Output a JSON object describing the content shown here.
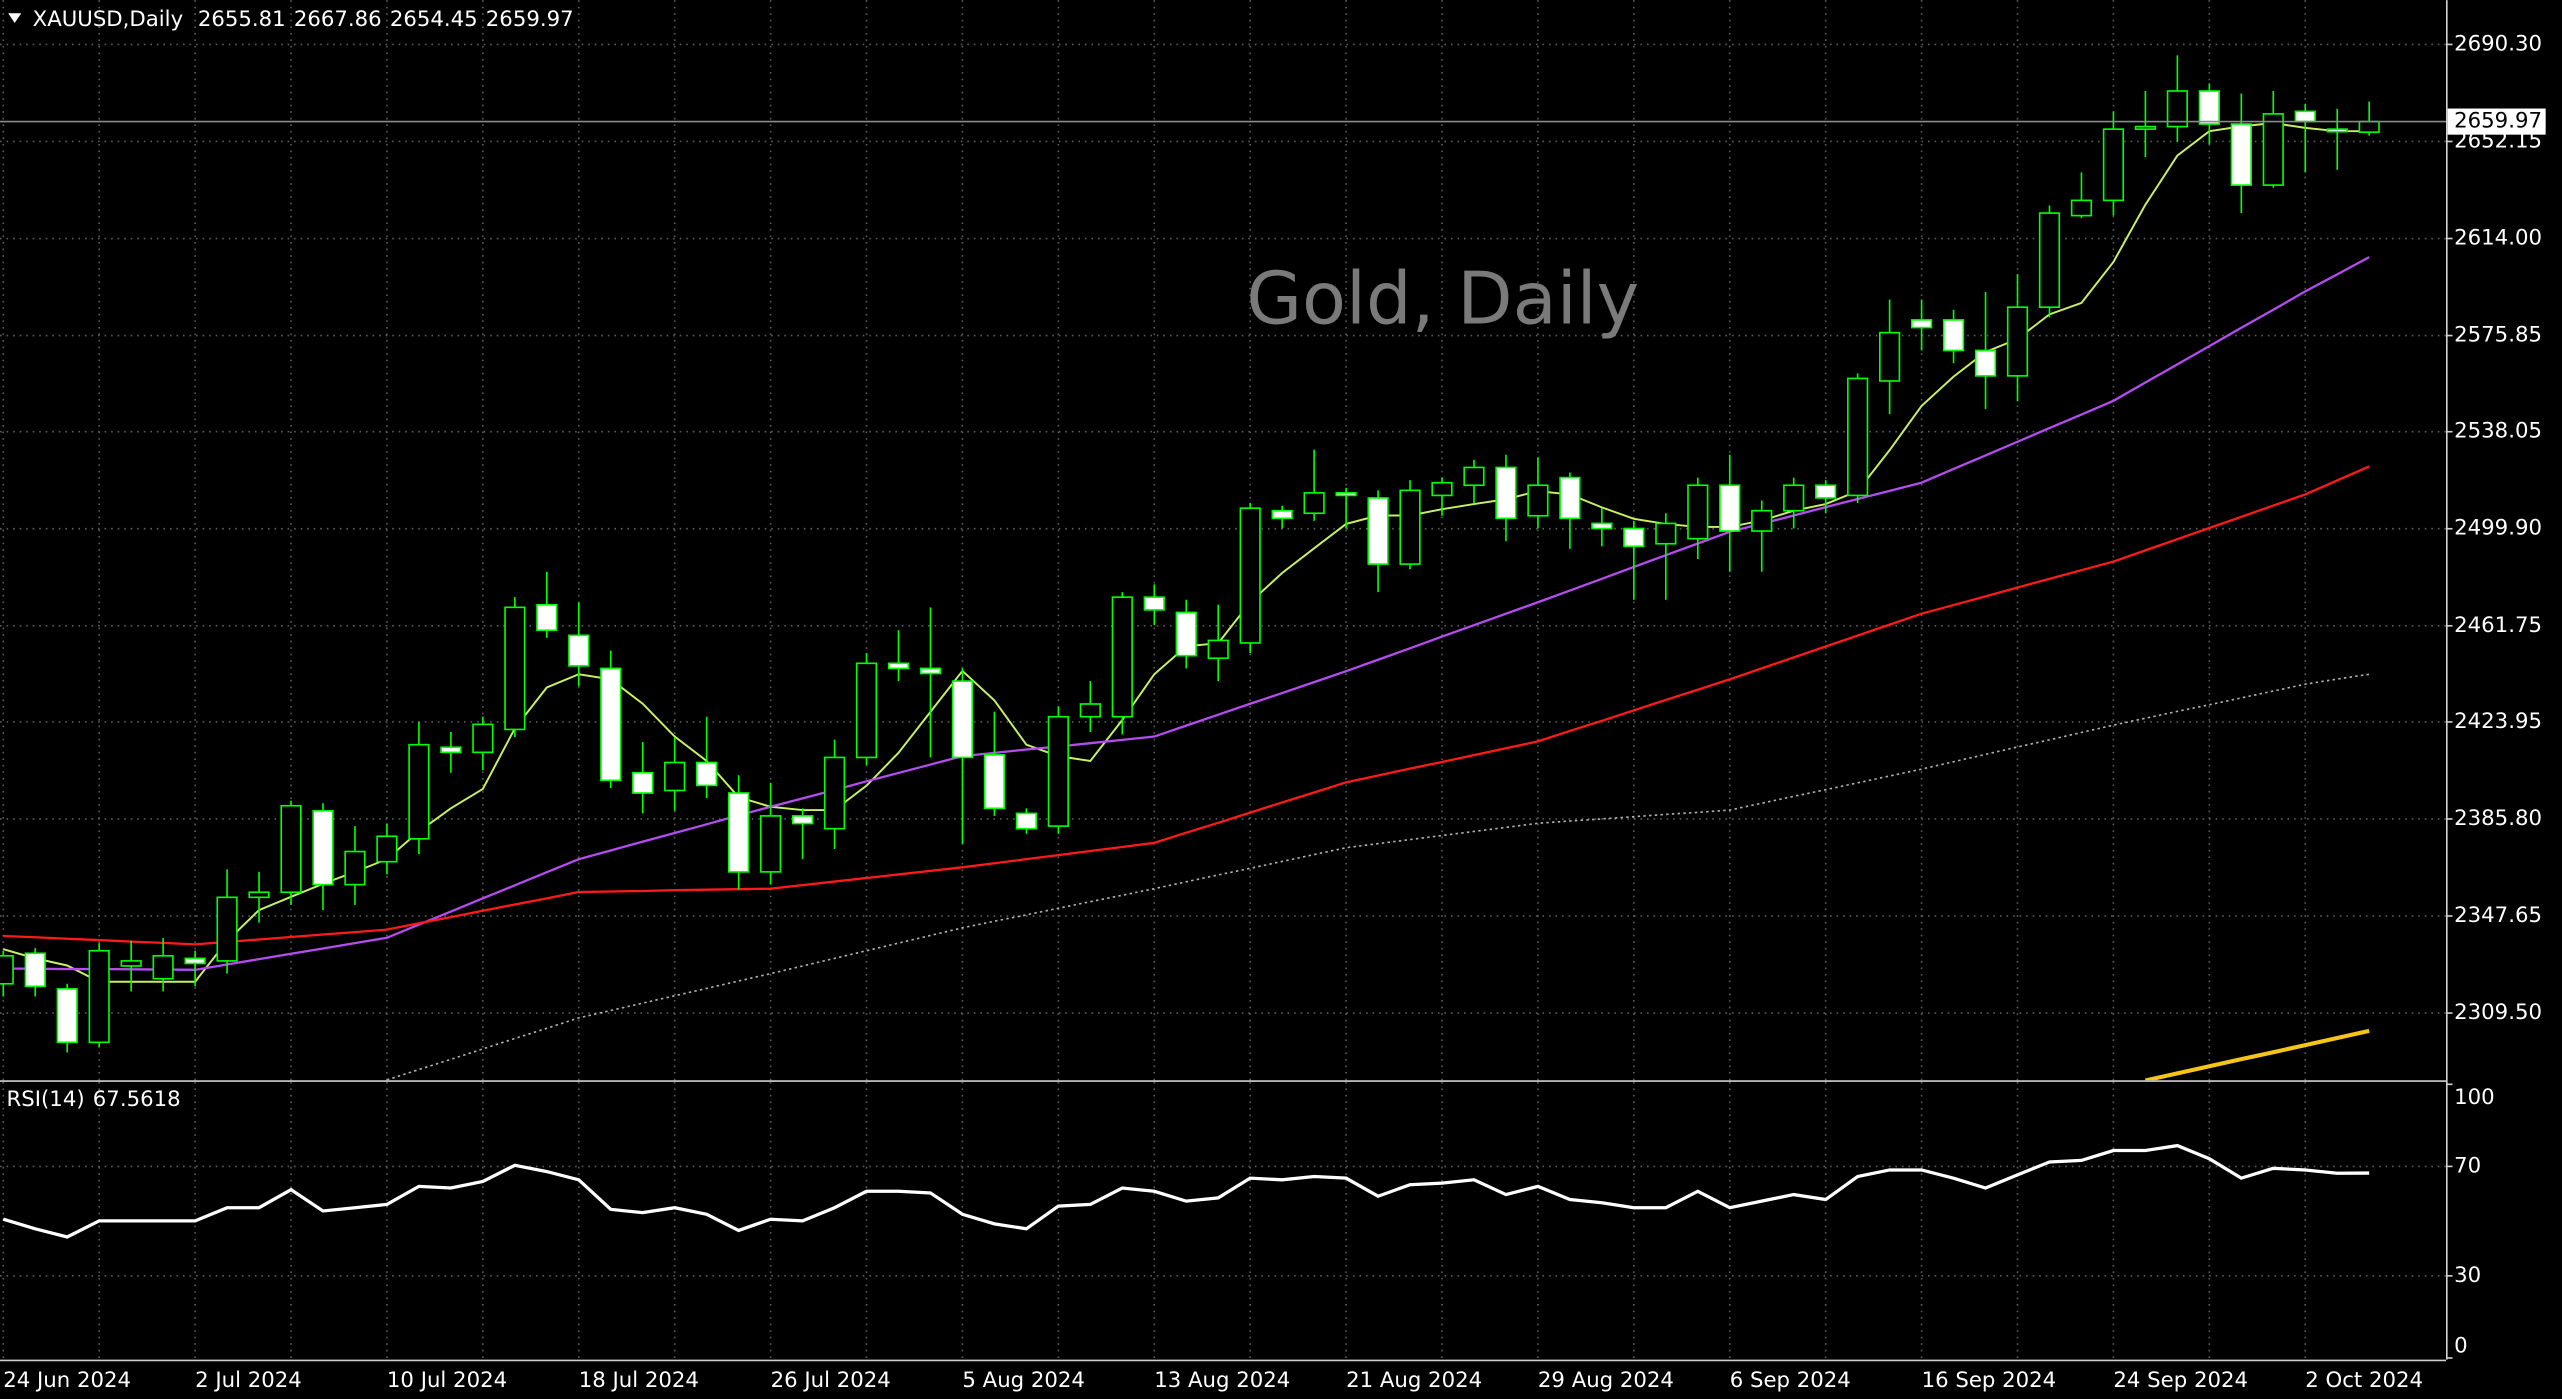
{
  "chart_data": [
    {
      "type": "candlestick",
      "title": "XAUUSD,Daily",
      "watermark": "Gold, Daily",
      "categories": [
        "24 Jun 2024",
        null,
        null,
        null,
        null,
        null,
        "2 Jul 2024",
        null,
        null,
        null,
        null,
        null,
        "10 Jul 2024",
        null,
        null,
        null,
        null,
        null,
        "18 Jul 2024",
        null,
        null,
        null,
        null,
        null,
        "26 Jul 2024",
        null,
        null,
        null,
        null,
        null,
        "5 Aug 2024",
        null,
        null,
        null,
        null,
        null,
        "13 Aug 2024",
        null,
        null,
        null,
        null,
        null,
        "21 Aug 2024",
        null,
        null,
        null,
        null,
        null,
        "29 Aug 2024",
        null,
        null,
        null,
        null,
        null,
        "6 Sep 2024",
        null,
        null,
        null,
        null,
        null,
        "16 Sep 2024",
        null,
        null,
        null,
        null,
        null,
        "24 Sep 2024",
        null,
        null,
        null,
        null,
        null,
        "2 Oct 2024",
        null,
        null
      ],
      "open": [
        2321,
        2333,
        2319,
        2298,
        2328,
        2323,
        2331,
        2330,
        2355,
        2357,
        2389,
        2360,
        2369,
        2378,
        2414,
        2412,
        2421,
        2470,
        2458,
        2445,
        2404,
        2397,
        2408,
        2396,
        2365,
        2387,
        2382,
        2410,
        2447,
        2445,
        2440,
        2411,
        2388,
        2383,
        2426,
        2426,
        2473,
        2467,
        2449,
        2455,
        2507,
        2506,
        2514,
        2512,
        2486,
        2513,
        2517,
        2524,
        2505,
        2520,
        2502,
        2500,
        2494,
        2496,
        2517,
        2499,
        2507,
        2517,
        2513,
        2558,
        2582,
        2582,
        2570,
        2560,
        2587,
        2623,
        2629,
        2657,
        2658,
        2672,
        2659,
        2635,
        2664,
        2657,
        2655.81
      ],
      "high": [
        2334,
        2335,
        2321,
        2337,
        2338,
        2339,
        2334,
        2366,
        2365,
        2393,
        2392,
        2383,
        2384,
        2424,
        2420,
        2426,
        2473,
        2483,
        2471,
        2452,
        2416,
        2418,
        2426,
        2403,
        2400,
        2390,
        2417,
        2451,
        2460,
        2469,
        2445,
        2428,
        2390,
        2430,
        2440,
        2475,
        2478,
        2472,
        2470,
        2510,
        2509,
        2531,
        2516,
        2515,
        2519,
        2520,
        2527,
        2529,
        2528,
        2522,
        2508,
        2503,
        2506,
        2520,
        2529,
        2511,
        2520,
        2519,
        2561,
        2590,
        2590,
        2586,
        2593,
        2600,
        2627,
        2640,
        2664,
        2672,
        2686,
        2675,
        2671,
        2672,
        2667,
        2665,
        2667.86
      ],
      "low": [
        2316,
        2316,
        2294,
        2296,
        2318,
        2318,
        2320,
        2325,
        2345,
        2352,
        2350,
        2352,
        2364,
        2372,
        2404,
        2405,
        2418,
        2457,
        2438,
        2398,
        2388,
        2389,
        2394,
        2358,
        2360,
        2370,
        2374,
        2407,
        2440,
        2410,
        2376,
        2387,
        2380,
        2380,
        2420,
        2419,
        2462,
        2445,
        2440,
        2451,
        2500,
        2503,
        2500,
        2475,
        2484,
        2505,
        2510,
        2495,
        2500,
        2492,
        2493,
        2472,
        2472,
        2488,
        2483,
        2483,
        2500,
        2506,
        2510,
        2545,
        2570,
        2565,
        2547,
        2550,
        2583,
        2622,
        2623,
        2646,
        2652,
        2651,
        2624,
        2634,
        2640,
        2641,
        2654.45
      ],
      "close": [
        2332,
        2320,
        2298,
        2334,
        2330,
        2332,
        2329,
        2355,
        2357,
        2391,
        2360,
        2373,
        2379,
        2415,
        2412,
        2423,
        2469,
        2460,
        2446,
        2401,
        2396,
        2408,
        2399,
        2365,
        2387,
        2384,
        2410,
        2447,
        2445,
        2443,
        2410,
        2390,
        2382,
        2426,
        2431,
        2473,
        2468,
        2450,
        2456,
        2508,
        2504,
        2514,
        2513,
        2486,
        2515,
        2518,
        2524,
        2504,
        2517,
        2504,
        2500,
        2493,
        2502,
        2517,
        2499,
        2507,
        2517,
        2512,
        2559,
        2577,
        2579,
        2570,
        2560,
        2587,
        2624,
        2629,
        2657,
        2658,
        2672,
        2659,
        2635,
        2663,
        2660,
        2656,
        2659.97
      ],
      "up_color": "#00ff00",
      "down_color": "#ffffff",
      "wick_color": "#00ff00",
      "series": [
        {
          "color": "#c8f064",
          "width": 1.2,
          "dashed": false,
          "values": [
            2334.6,
            2331,
            2328.2,
            2321.8,
            2321.8,
            2321.8,
            2321.8,
            2337.8,
            2350,
            2355.2,
            2360.3,
            2365,
            2370.0,
            2380.9,
            2390,
            2397.6,
            2421.4,
            2437.5,
            2442.7,
            2440.7,
            2431.1,
            2418.2,
            2408.6,
            2394.4,
            2390.6,
            2389.3,
            2389.3,
            2398.9,
            2411.8,
            2427.9,
            2444.0,
            2432.4,
            2415.0,
            2410.5,
            2408.6,
            2424.7,
            2442.7,
            2453.7,
            2454.9,
            2471.0,
            2482.5,
            2492.2,
            2501.8,
            2505.1,
            2505.1,
            2507.6,
            2509.6,
            2511.5,
            2514.7,
            2513.4,
            2508.3,
            2503.8,
            2501.8,
            2500.6,
            2500.6,
            2503.1,
            2507.0,
            2509.6,
            2514.7,
            2530.8,
            2548.2,
            2559.7,
            2569.4,
            2574.5,
            2584.2,
            2588.7,
            2604.8,
            2627.3,
            2646.6,
            2656.2,
            2658.1,
            2659.4,
            2657.5,
            2656.2,
            2656.2
          ]
        },
        {
          "color": "#b44cf0",
          "width": 1.4,
          "dashed": false,
          "values": [
            2327.0,
            2326.9,
            2326.8,
            2326.8,
            2326.7,
            2326.6,
            2326.5,
            2328.6,
            2330.7,
            2332.8,
            2334.9,
            2337.0,
            2339.1,
            2344.3,
            2349.4,
            2354.6,
            2359.7,
            2364.9,
            2370.0,
            2373.4,
            2376.9,
            2380.3,
            2383.7,
            2387.2,
            2390.6,
            2393.9,
            2397.2,
            2400.6,
            2403.9,
            2407.2,
            2410.5,
            2411.8,
            2413.1,
            2414.3,
            2415.6,
            2416.9,
            2418.2,
            2422.5,
            2426.8,
            2431.1,
            2435.3,
            2439.6,
            2443.9,
            2448.4,
            2452.9,
            2457.5,
            2462.0,
            2466.5,
            2471.0,
            2475.6,
            2480.2,
            2484.9,
            2489.5,
            2494.1,
            2498.7,
            2501.9,
            2505.1,
            2508.4,
            2511.6,
            2514.8,
            2518.0,
            2523.4,
            2528.7,
            2534.1,
            2539.5,
            2544.8,
            2550.2,
            2557.4,
            2564.5,
            2571.7,
            2578.9,
            2586.0,
            2593.2,
            2599.9,
            2606.7
          ]
        },
        {
          "color": "#ff1a1a",
          "width": 1.4,
          "dashed": false,
          "values": [
            2339.8,
            2339.3,
            2338.7,
            2338.2,
            2337.6,
            2337.1,
            2336.5,
            2337.5,
            2338.4,
            2339.4,
            2340.4,
            2341.3,
            2342.3,
            2344.8,
            2347.2,
            2349.7,
            2352.2,
            2354.6,
            2357.1,
            2357.3,
            2357.5,
            2357.8,
            2358.0,
            2358.2,
            2358.4,
            2359.8,
            2361.2,
            2362.6,
            2364.0,
            2365.4,
            2366.8,
            2368.4,
            2370.0,
            2371.6,
            2373.2,
            2374.8,
            2376.4,
            2380.4,
            2384.3,
            2388.3,
            2392.3,
            2396.2,
            2400.2,
            2402.9,
            2405.6,
            2408.2,
            2410.9,
            2413.6,
            2416.3,
            2420.4,
            2424.4,
            2428.5,
            2432.6,
            2436.6,
            2440.7,
            2445.0,
            2449.3,
            2453.6,
            2457.9,
            2462.2,
            2466.5,
            2469.9,
            2473.3,
            2476.8,
            2480.2,
            2483.6,
            2487.0,
            2491.4,
            2495.8,
            2500.2,
            2504.6,
            2509.0,
            2513.4,
            2518.9,
            2524.4
          ]
        },
        {
          "color": "#b0b0b0",
          "width": 1,
          "dashed": true,
          "values": [
            null,
            null,
            null,
            null,
            null,
            null,
            null,
            null,
            null,
            null,
            null,
            null,
            2283.2,
            2287.3,
            2291.3,
            2295.4,
            2299.5,
            2303.5,
            2307.6,
            2310.5,
            2313.4,
            2316.3,
            2319.2,
            2322.1,
            2325.0,
            2328.0,
            2331.0,
            2334.0,
            2337.0,
            2340.0,
            2343.0,
            2345.6,
            2348.1,
            2350.7,
            2353.3,
            2355.8,
            2358.4,
            2361.1,
            2363.8,
            2366.4,
            2369.1,
            2371.8,
            2374.5,
            2376.1,
            2377.7,
            2379.3,
            2380.9,
            2382.5,
            2384.1,
            2385.0,
            2385.8,
            2386.7,
            2387.6,
            2388.4,
            2389.3,
            2392.0,
            2394.7,
            2397.3,
            2400.0,
            2402.7,
            2405.4,
            2408.3,
            2411.2,
            2414.1,
            2416.9,
            2419.8,
            2422.7,
            2425.4,
            2428.1,
            2430.7,
            2433.4,
            2436.1,
            2438.8,
            2440.8,
            2442.7
          ]
        },
        {
          "color": "#f5c518",
          "width": 2.5,
          "dashed": false,
          "values": [
            null,
            null,
            null,
            null,
            null,
            null,
            null,
            null,
            null,
            null,
            null,
            null,
            null,
            null,
            null,
            null,
            null,
            null,
            null,
            null,
            null,
            null,
            null,
            null,
            null,
            null,
            null,
            null,
            null,
            null,
            null,
            null,
            null,
            null,
            null,
            null,
            null,
            null,
            null,
            null,
            null,
            null,
            null,
            null,
            null,
            null,
            null,
            null,
            null,
            null,
            null,
            null,
            null,
            null,
            null,
            null,
            null,
            null,
            null,
            null,
            null,
            null,
            null,
            null,
            null,
            null,
            null,
            2283.0,
            2285.8,
            2288.6,
            2291.4,
            2294.1,
            2296.9,
            2299.7,
            2302.5
          ]
        }
      ],
      "ylim": [
        2283.1,
        2707.7
      ],
      "yticks": [
        {
          "value": 2690.3,
          "label": "2690.30"
        },
        2652.15,
        {
          "value": 2614,
          "label": "2614.00"
        },
        2575.85,
        2538.05,
        {
          "value": 2499.9,
          "label": "2499.90"
        },
        2461.75,
        2423.95,
        {
          "value": 2385.8,
          "label": "2385.80"
        },
        2347.65,
        {
          "value": 2309.5,
          "label": "2309.50"
        }
      ],
      "grid": true
    },
    {
      "type": "line",
      "title": "RSI(14)",
      "series": [
        {
          "color": "#ffffff",
          "values": [
            50.7,
            47.2,
            44.2,
            50.1,
            50.1,
            50.1,
            50.1,
            54.9,
            54.9,
            61.5,
            53.7,
            54.9,
            56.1,
            62.7,
            62.1,
            64.5,
            70.4,
            68.1,
            65.1,
            54.3,
            53.1,
            54.9,
            52.5,
            46.6,
            50.7,
            50.1,
            54.9,
            60.9,
            60.9,
            60.3,
            52.5,
            49.0,
            47.2,
            55.5,
            56.1,
            62.1,
            60.9,
            57.3,
            58.5,
            65.7,
            65.1,
            66.3,
            65.7,
            59.1,
            63.3,
            63.9,
            65.1,
            59.7,
            62.7,
            57.9,
            56.7,
            54.9,
            54.9,
            60.9,
            54.9,
            57.3,
            59.7,
            57.9,
            66.3,
            68.7,
            68.7,
            65.7,
            62.1,
            66.9,
            71.6,
            72.2,
            75.8,
            75.8,
            77.6,
            72.8,
            65.7,
            69.3,
            68.7,
            67.5,
            67.5618
          ]
        }
      ],
      "ylim": [
        0,
        100
      ],
      "yticks": [
        100,
        70,
        30,
        0
      ],
      "grid": true
    }
  ]
}
